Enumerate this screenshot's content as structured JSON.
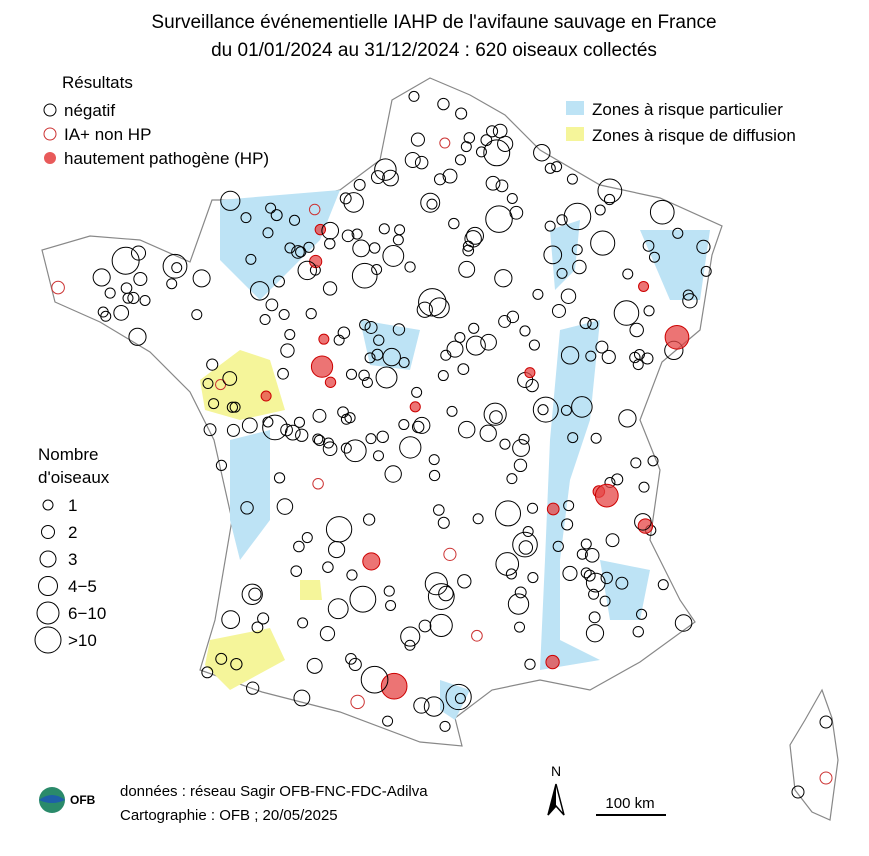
{
  "title": [
    "Surveillance événementielle IAHP de l'avifaune sauvage en France",
    "du 01/01/2024 au 31/12/2024 :  620  oiseaux collectés"
  ],
  "results_legend": {
    "title": "Résultats",
    "items": [
      "négatif",
      "IA+ non HP",
      "hautement pathogène (HP)"
    ]
  },
  "zones_legend": [
    "Zones à risque particulier",
    "Zones à risque de diffusion"
  ],
  "size_legend": {
    "title": [
      "Nombre",
      "d'oiseaux"
    ],
    "items": [
      "1",
      "2",
      "3",
      "4−5",
      "6−10",
      ">10"
    ]
  },
  "credits": [
    "données : réseau Sagir OFB-FNC-FDC-Adilva",
    "Cartographie : OFB ; 20/05/2025"
  ],
  "logo": "OFB",
  "north": "N",
  "scale": "100 km"
}
